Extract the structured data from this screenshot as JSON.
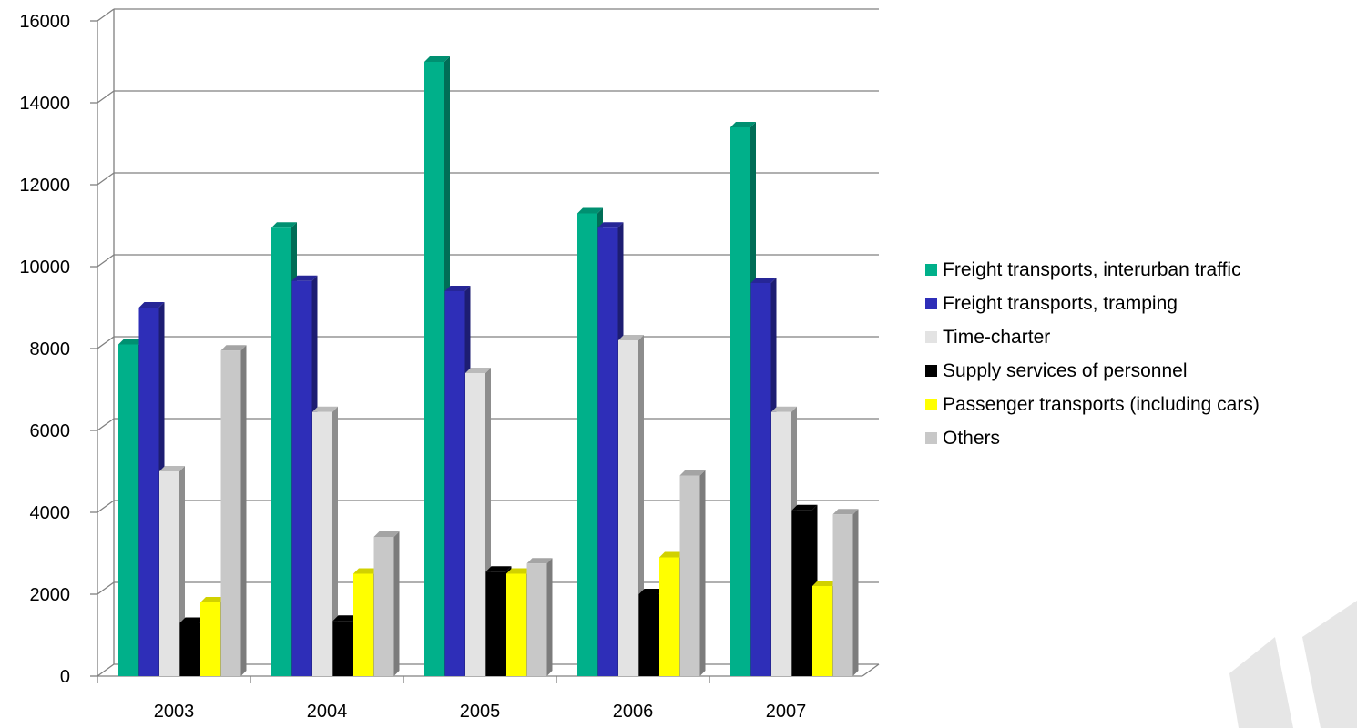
{
  "chart_data": {
    "type": "bar",
    "title": "",
    "xlabel": "",
    "ylabel": "",
    "ylim": [
      0,
      16000
    ],
    "yticks": [
      "0",
      "2000",
      "4000",
      "6000",
      "8000",
      "10000",
      "12000",
      "14000",
      "16000"
    ],
    "categories": [
      "2003",
      "2004",
      "2005",
      "2006",
      "2007"
    ],
    "grid": true,
    "legend_position": "right",
    "series": [
      {
        "name": "Freight transports, interurban traffic",
        "color": "#00B08A",
        "values": [
          8100,
          10950,
          15000,
          11300,
          13400
        ]
      },
      {
        "name": "Freight transports, tramping",
        "color": "#2E2EB8",
        "values": [
          9000,
          9650,
          9400,
          10950,
          9600
        ]
      },
      {
        "name": "Time-charter",
        "color": "#E3E3E3",
        "values": [
          5000,
          6450,
          7400,
          8200,
          6450
        ]
      },
      {
        "name": "Supply services of personnel",
        "color": "#000000",
        "values": [
          1300,
          1350,
          2550,
          2000,
          4050
        ]
      },
      {
        "name": "Passenger transports (including cars)",
        "color": "#FFFF00",
        "values": [
          1800,
          2500,
          2500,
          2900,
          2200
        ]
      },
      {
        "name": "Others",
        "color": "#C8C8C8",
        "values": [
          7950,
          3400,
          2750,
          4900,
          3950
        ]
      }
    ]
  }
}
